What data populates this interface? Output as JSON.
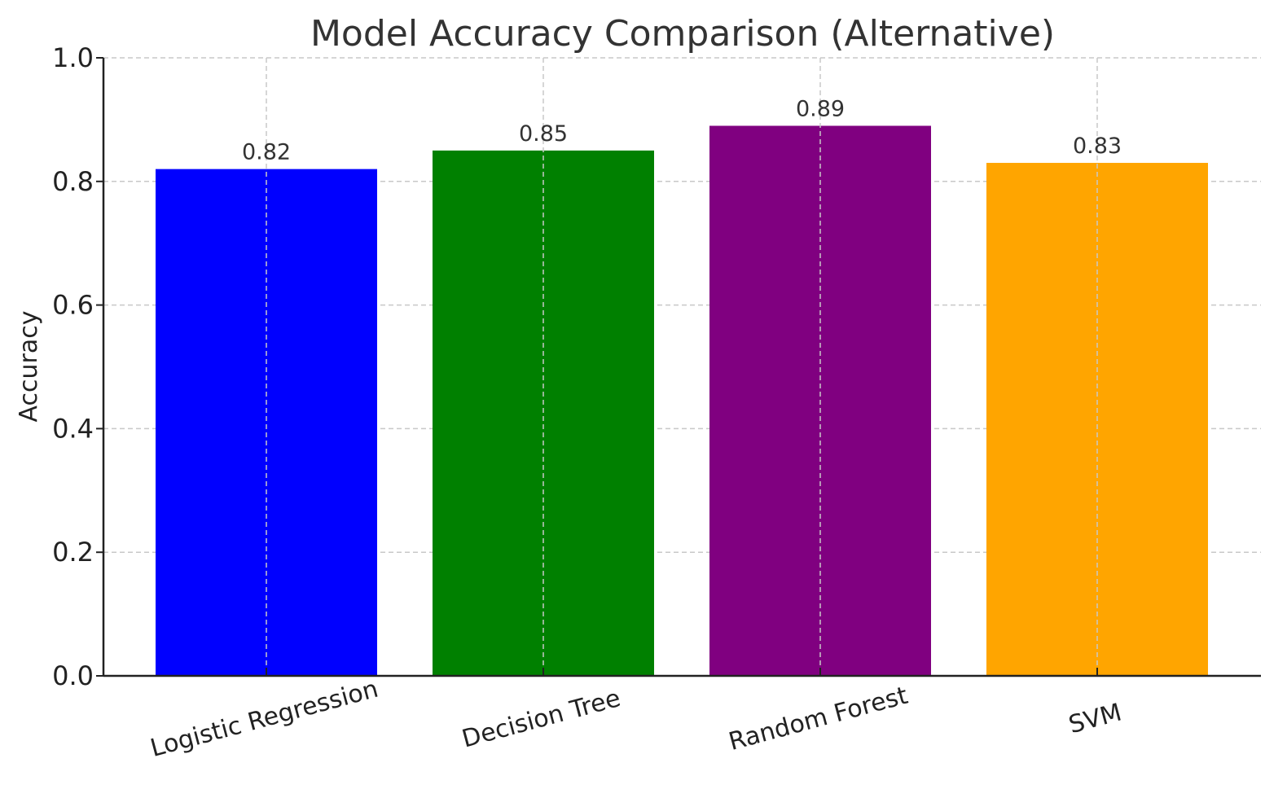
{
  "chart_data": {
    "type": "bar",
    "title": "Model Accuracy Comparison (Alternative)",
    "xlabel": "",
    "ylabel": "Accuracy",
    "ylim": [
      0,
      1.0
    ],
    "yticks": [
      "0.0",
      "0.2",
      "0.4",
      "0.6",
      "0.8",
      "1.0"
    ],
    "categories": [
      "Logistic Regression",
      "Decision Tree",
      "Random Forest",
      "SVM"
    ],
    "values": [
      0.82,
      0.85,
      0.89,
      0.83
    ],
    "data_labels": [
      "0.82",
      "0.85",
      "0.89",
      "0.83"
    ],
    "colors": [
      "#0000ff",
      "#008000",
      "#800080",
      "#ffa500"
    ],
    "grid": true,
    "legend": "none"
  }
}
